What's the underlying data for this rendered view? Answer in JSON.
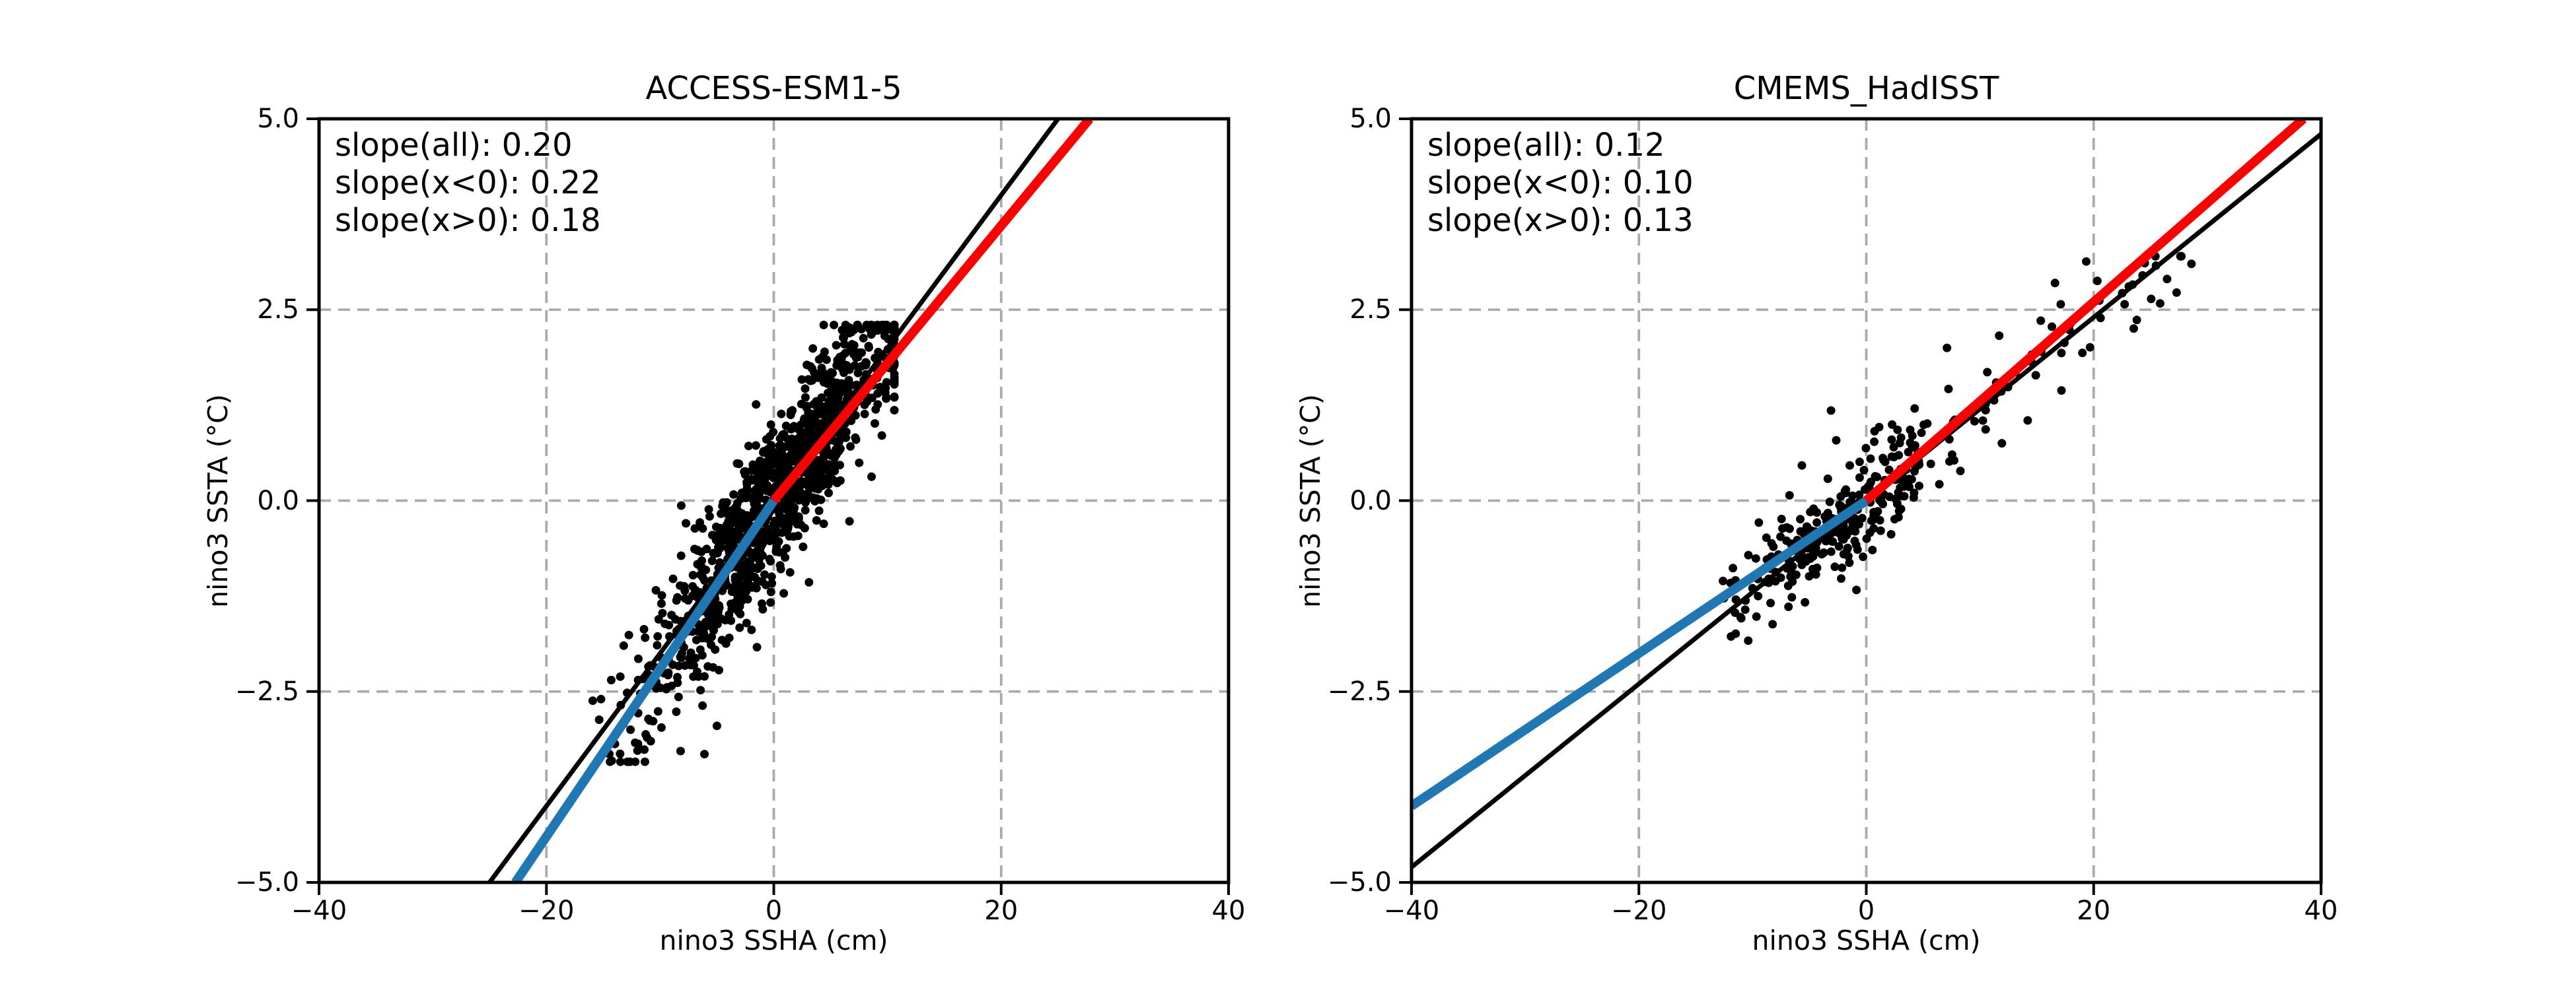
{
  "figure": {
    "background": "#ffffff",
    "text_color": "#000000"
  },
  "chart_data": [
    {
      "type": "scatter",
      "title": "ACCESS-ESM1-5",
      "xlabel": "nino3 SSHA (cm)",
      "ylabel": "nino3 SSTA (°C)",
      "xlim": [
        -40,
        40
      ],
      "ylim": [
        -5,
        5
      ],
      "xticks": [
        -40,
        -20,
        0,
        20,
        40
      ],
      "xtick_labels": [
        "−40",
        "−20",
        "0",
        "20",
        "40"
      ],
      "yticks": [
        5.0,
        2.5,
        0.0,
        -2.5,
        -5.0
      ],
      "ytick_labels": [
        "5.0",
        "2.5",
        "0.0",
        "−2.5",
        "−5.0"
      ],
      "grid": {
        "on": true,
        "color": "#ababab",
        "dash": [
          18,
          11
        ],
        "width": 3.8
      },
      "annotations": [
        "slope(all): 0.20",
        "slope(x<0): 0.22",
        "slope(x>0): 0.18"
      ],
      "slopes": {
        "all": 0.2,
        "x_lt_0": 0.22,
        "x_gt_0": 0.18
      },
      "fit_lines": [
        {
          "name": "fit-all",
          "slope": 0.2,
          "color": "#000000",
          "width": 7,
          "x_range": [
            -25,
            25
          ]
        },
        {
          "name": "fit-negative",
          "slope": 0.22,
          "color": "#1f77b4",
          "width": 14,
          "x_range": [
            -22.73,
            0
          ]
        },
        {
          "name": "fit-positive",
          "slope": 0.18,
          "color": "#ff0000",
          "width": 14,
          "x_range": [
            0,
            27.78
          ]
        }
      ],
      "scatter": {
        "color": "#000000",
        "radius": 6.5,
        "n_points_approx": 1197,
        "x_range_visible": [
          -16,
          10.8
        ],
        "y_range_visible": [
          -3.4,
          2.3
        ],
        "clusters": [
          {
            "n": 1150,
            "seed": 20,
            "x_dist": "normal",
            "x_mean": 0.6,
            "x_std": 5.2,
            "x_clip": [
              -16,
              10.6
            ],
            "trend": 0.205,
            "y_offset": 0,
            "y_noise": 0.5,
            "y_clip": [
              -3.35,
              2.3
            ]
          },
          {
            "n": 38,
            "seed": 21,
            "x_dist": "uniform",
            "x_min": -14.5,
            "x_max": -4.5,
            "x_clip": [
              -14.5,
              -4.5
            ],
            "trend": 0.23,
            "y_offset": -0.32,
            "y_noise": 0.38,
            "y_clip": [
              -3.42,
              -1.0
            ]
          }
        ],
        "extra_points": [
          [
            -14.3,
            -2.35
          ],
          [
            -13.2,
            -1.9
          ],
          [
            -12.6,
            -3.0
          ],
          [
            -8.2,
            -3.28
          ],
          [
            -6.1,
            -3.32
          ],
          [
            -5.0,
            -2.95
          ],
          [
            9.9,
            1.35
          ],
          [
            10.6,
            1.6
          ],
          [
            -15.2,
            -2.6
          ]
        ]
      }
    },
    {
      "type": "scatter",
      "title": "CMEMS_HadISST",
      "xlabel": "nino3 SSHA (cm)",
      "ylabel": "nino3 SSTA (°C)",
      "xlim": [
        -40,
        40
      ],
      "ylim": [
        -5,
        5
      ],
      "xticks": [
        -40,
        -20,
        0,
        20,
        40
      ],
      "xtick_labels": [
        "−40",
        "−20",
        "0",
        "20",
        "40"
      ],
      "yticks": [
        5.0,
        2.5,
        0.0,
        -2.5,
        -5.0
      ],
      "ytick_labels": [
        "5.0",
        "2.5",
        "0.0",
        "−2.5",
        "−5.0"
      ],
      "grid": {
        "on": true,
        "color": "#ababab",
        "dash": [
          18,
          11
        ],
        "width": 3.8
      },
      "annotations": [
        "slope(all): 0.12",
        "slope(x<0): 0.10",
        "slope(x>0): 0.13"
      ],
      "slopes": {
        "all": 0.12,
        "x_lt_0": 0.1,
        "x_gt_0": 0.13
      },
      "fit_lines": [
        {
          "name": "fit-all",
          "slope": 0.12,
          "color": "#000000",
          "width": 7,
          "x_range": [
            -40,
            40
          ]
        },
        {
          "name": "fit-negative",
          "slope": 0.1,
          "color": "#1f77b4",
          "width": 14,
          "x_range": [
            -40,
            0
          ]
        },
        {
          "name": "fit-positive",
          "slope": 0.13,
          "color": "#ff0000",
          "width": 14,
          "x_range": [
            0,
            38.46
          ]
        }
      ],
      "scatter": {
        "color": "#000000",
        "radius": 6.5,
        "n_points_approx": 352,
        "x_range_visible": [
          -12.6,
          28.6
        ],
        "y_range_visible": [
          -1.95,
          3.2
        ],
        "clusters": [
          {
            "n": 300,
            "seed": 7,
            "x_dist": "normal",
            "x_mean": -1.6,
            "x_std": 4.7,
            "x_clip": [
              -12.6,
              10.5
            ],
            "trend": 0.115,
            "y_offset": 0,
            "y_noise": 0.34,
            "y_clip": [
              -1.95,
              2.05
            ]
          },
          {
            "n": 44,
            "seed": 8,
            "x_dist": "uniform",
            "x_min": 9.5,
            "x_max": 28.5,
            "x_clip": [
              9.5,
              28.5
            ],
            "trend": 0.127,
            "y_offset": 0,
            "y_noise": 0.32,
            "y_clip": [
              0.55,
              3.2
            ]
          }
        ],
        "extra_points": [
          [
            -3.1,
            1.18
          ],
          [
            28.6,
            3.1
          ],
          [
            24.3,
            2.95
          ],
          [
            16.6,
            2.85
          ],
          [
            7.1,
            2.0
          ],
          [
            -11.9,
            -1.78
          ],
          [
            20.5,
            2.62
          ],
          [
            14.2,
            1.05
          ]
        ]
      }
    }
  ]
}
